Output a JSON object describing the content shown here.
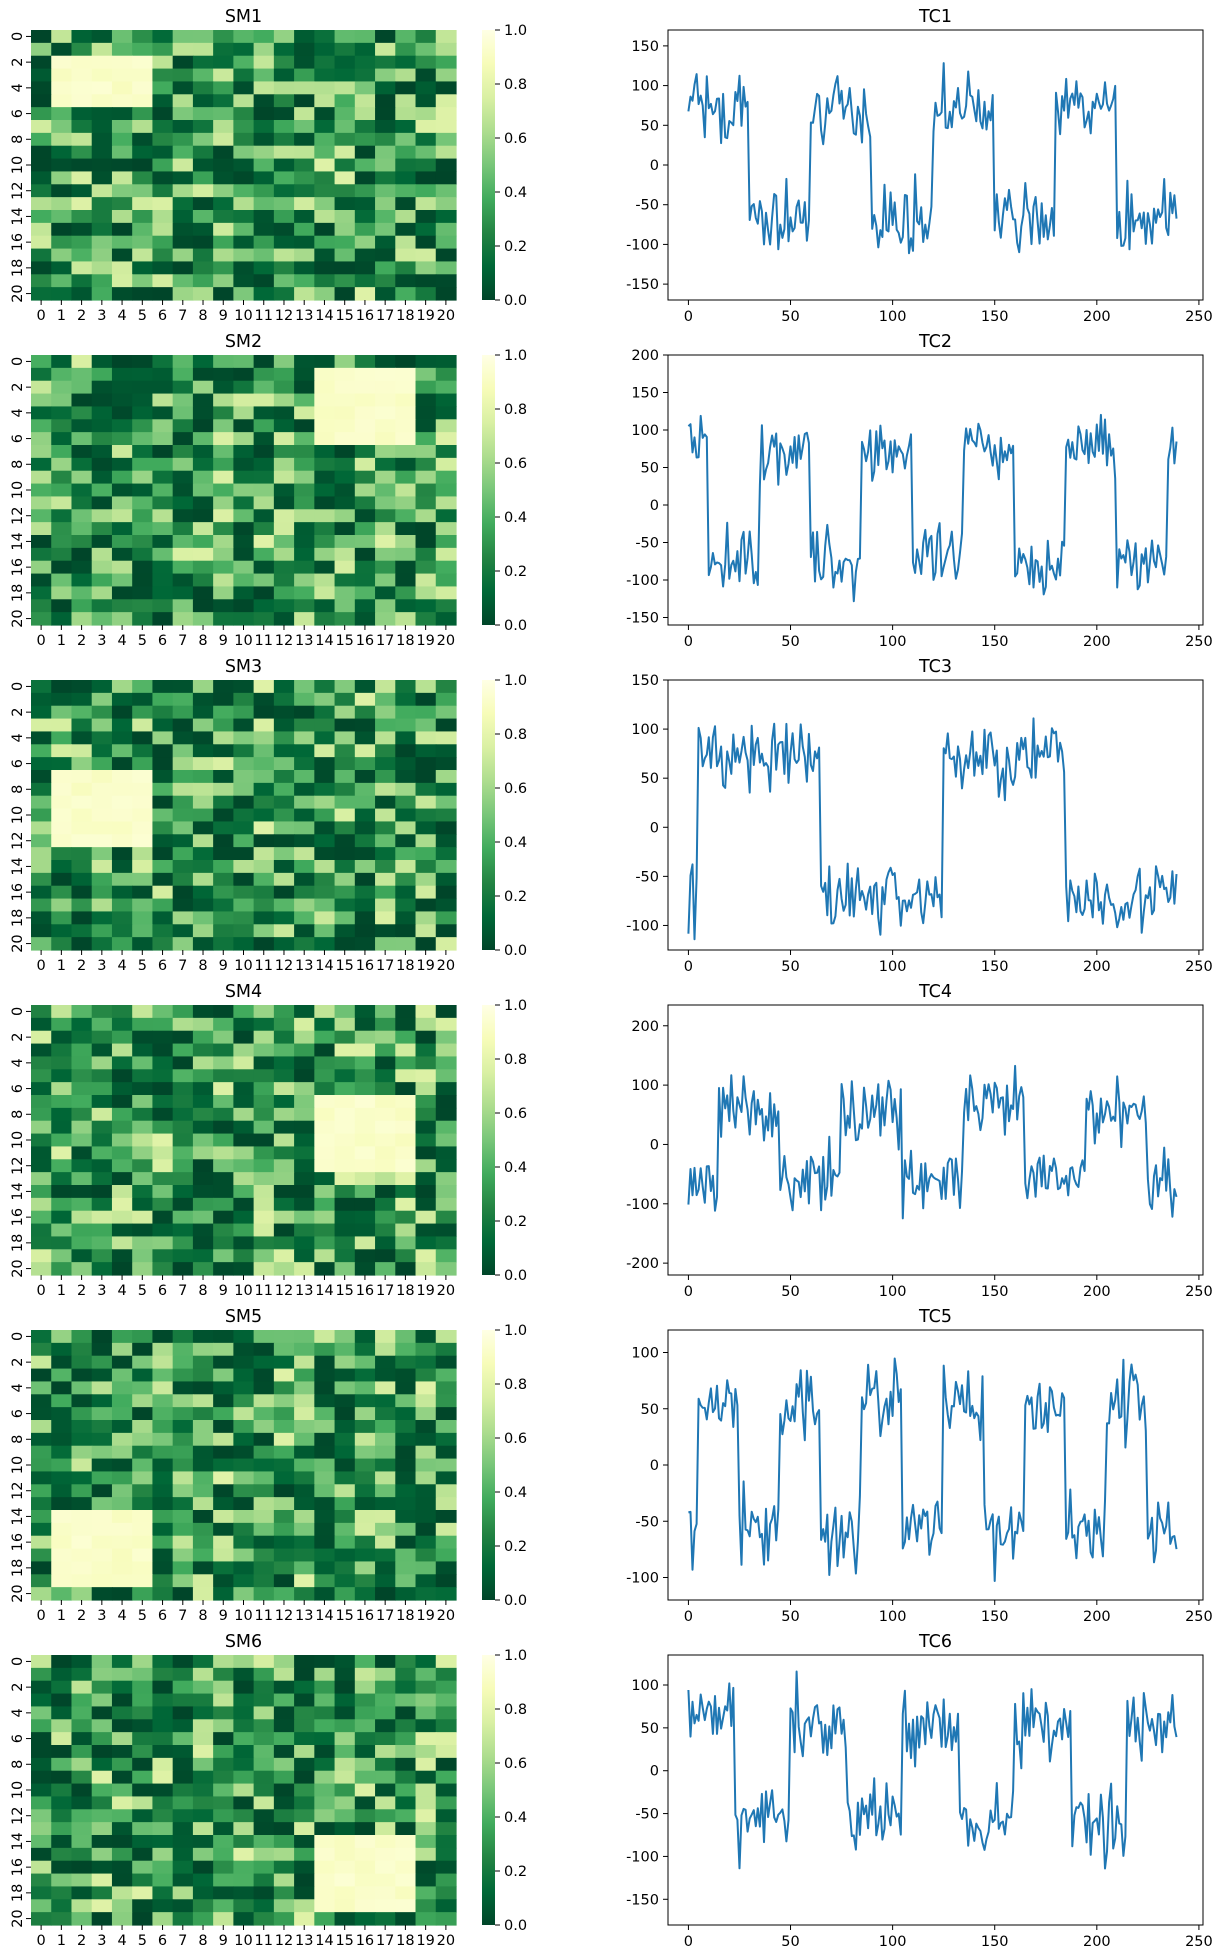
{
  "figure": {
    "heatmap_titles": [
      "SM1",
      "SM2",
      "SM3",
      "SM4",
      "SM5",
      "SM6"
    ],
    "line_titles": [
      "TC1",
      "TC2",
      "TC3",
      "TC4",
      "TC5",
      "TC6"
    ],
    "heatmap_x_ticks": [
      "0",
      "1",
      "2",
      "3",
      "4",
      "5",
      "6",
      "7",
      "8",
      "9",
      "10",
      "11",
      "12",
      "13",
      "14",
      "15",
      "16",
      "17",
      "18",
      "19",
      "20"
    ],
    "heatmap_y_ticks": [
      "0",
      "2",
      "4",
      "6",
      "8",
      "10",
      "12",
      "14",
      "16",
      "18",
      "20"
    ],
    "colorbar_ticks": [
      "0.0",
      "0.2",
      "0.4",
      "0.6",
      "0.8",
      "1.0"
    ],
    "line_x_ticks": [
      "0",
      "50",
      "100",
      "150",
      "200",
      "250"
    ],
    "colormap": "YlGn_r",
    "colormap_stops": [
      "#004529",
      "#006837",
      "#238443",
      "#41ab5d",
      "#78c679",
      "#addd8e",
      "#d9f0a3",
      "#f7fcb9",
      "#ffffe5"
    ],
    "line_color": "#1f77b4"
  },
  "chart_data": [
    {
      "type": "heatmap",
      "title": "SM1",
      "grid": [
        21,
        21
      ],
      "vmin": 0,
      "vmax": 1,
      "active_block": {
        "rows": [
          2,
          5
        ],
        "cols": [
          1,
          5
        ],
        "value": 0.95
      },
      "background_range": [
        0,
        0.7
      ],
      "x_ticks": "0-20",
      "y_ticks": "0-20 step 2"
    },
    {
      "type": "line",
      "title": "TC1",
      "xlim": [
        0,
        250
      ],
      "ylim": [
        -170,
        170
      ],
      "y_ticks": [
        -150,
        -100,
        -50,
        0,
        50,
        100,
        150
      ],
      "n": 240,
      "period": 60,
      "phase": 0,
      "amplitude": 70,
      "noise": 30
    },
    {
      "type": "heatmap",
      "title": "SM2",
      "grid": [
        21,
        21
      ],
      "vmin": 0,
      "vmax": 1,
      "active_block": {
        "rows": [
          1,
          6
        ],
        "cols": [
          14,
          18
        ],
        "value": 0.95
      },
      "background_range": [
        0,
        0.7
      ],
      "x_ticks": "0-20",
      "y_ticks": "0-20 step 2"
    },
    {
      "type": "line",
      "title": "TC2",
      "xlim": [
        0,
        250
      ],
      "ylim": [
        -160,
        200
      ],
      "y_ticks": [
        -150,
        -100,
        -50,
        0,
        50,
        100,
        150,
        200
      ],
      "n": 240,
      "period": 50,
      "phase": 15,
      "amplitude": 75,
      "noise": 30
    },
    {
      "type": "heatmap",
      "title": "SM3",
      "grid": [
        21,
        21
      ],
      "vmin": 0,
      "vmax": 1,
      "active_block": {
        "rows": [
          7,
          12
        ],
        "cols": [
          1,
          5
        ],
        "value": 0.95
      },
      "background_range": [
        0,
        0.7
      ],
      "x_ticks": "0-20",
      "y_ticks": "0-20 step 2"
    },
    {
      "type": "line",
      "title": "TC3",
      "xlim": [
        0,
        250
      ],
      "ylim": [
        -125,
        150
      ],
      "y_ticks": [
        -100,
        -50,
        0,
        50,
        100,
        150
      ],
      "n": 240,
      "period": 120,
      "phase": -5,
      "amplitude": 70,
      "noise": 25
    },
    {
      "type": "heatmap",
      "title": "SM4",
      "grid": [
        21,
        21
      ],
      "vmin": 0,
      "vmax": 1,
      "active_block": {
        "rows": [
          7,
          12
        ],
        "cols": [
          14,
          18
        ],
        "value": 0.95
      },
      "background_range": [
        0,
        0.7
      ],
      "x_ticks": "0-20",
      "y_ticks": "0-20 step 2"
    },
    {
      "type": "line",
      "title": "TC4",
      "xlim": [
        0,
        250
      ],
      "ylim": [
        -220,
        235
      ],
      "y_ticks": [
        -200,
        -100,
        0,
        100,
        200
      ],
      "n": 240,
      "period": 60,
      "phase": -15,
      "amplitude": 60,
      "noise": 40
    },
    {
      "type": "heatmap",
      "title": "SM5",
      "grid": [
        21,
        21
      ],
      "vmin": 0,
      "vmax": 1,
      "active_block": {
        "rows": [
          14,
          19
        ],
        "cols": [
          1,
          5
        ],
        "value": 0.95
      },
      "background_range": [
        0,
        0.7
      ],
      "x_ticks": "0-20",
      "y_ticks": "0-20 step 2"
    },
    {
      "type": "line",
      "title": "TC5",
      "xlim": [
        0,
        250
      ],
      "ylim": [
        -120,
        120
      ],
      "y_ticks": [
        -100,
        -50,
        0,
        50,
        100
      ],
      "n": 240,
      "period": 40,
      "phase": -5,
      "amplitude": 55,
      "noise": 25
    },
    {
      "type": "heatmap",
      "title": "SM6",
      "grid": [
        21,
        21
      ],
      "vmin": 0,
      "vmax": 1,
      "active_block": {
        "rows": [
          14,
          19
        ],
        "cols": [
          14,
          18
        ],
        "value": 0.95
      },
      "background_range": [
        0,
        0.7
      ],
      "x_ticks": "0-20",
      "y_ticks": "0-20 step 2"
    },
    {
      "type": "line",
      "title": "TC6",
      "xlim": [
        0,
        250
      ],
      "ylim": [
        -180,
        135
      ],
      "y_ticks": [
        -150,
        -100,
        -50,
        0,
        50,
        100
      ],
      "n": 240,
      "period": 55,
      "phase": 5,
      "amplitude": 55,
      "noise": 30
    }
  ]
}
